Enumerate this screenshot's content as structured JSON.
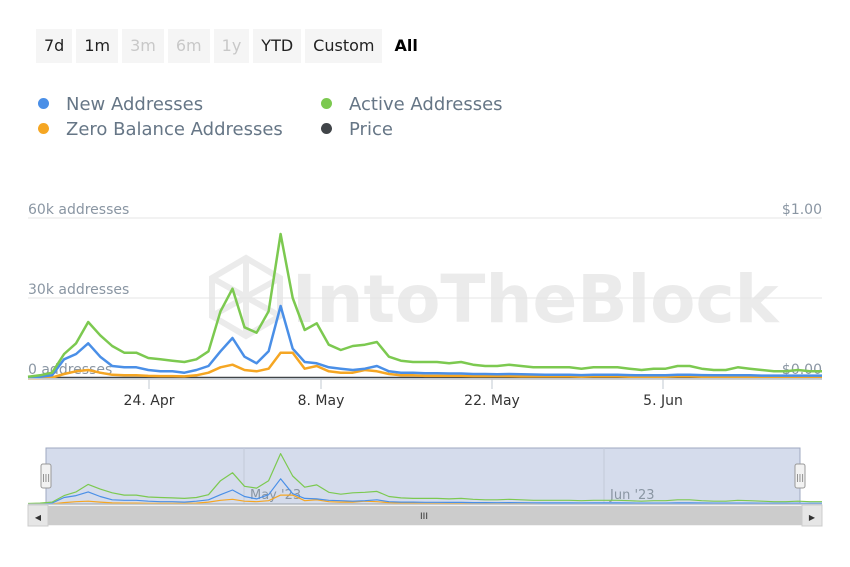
{
  "range_selector": {
    "buttons": [
      {
        "label": "7d",
        "state": "normal"
      },
      {
        "label": "1m",
        "state": "normal"
      },
      {
        "label": "3m",
        "state": "disabled"
      },
      {
        "label": "6m",
        "state": "disabled"
      },
      {
        "label": "1y",
        "state": "disabled"
      },
      {
        "label": "YTD",
        "state": "normal"
      },
      {
        "label": "Custom",
        "state": "normal"
      },
      {
        "label": "All",
        "state": "active"
      }
    ]
  },
  "legend": {
    "new_addresses": {
      "label": "New Addresses",
      "color": "#4a8fe7"
    },
    "active_addresses": {
      "label": "Active Addresses",
      "color": "#7cc950"
    },
    "zero_balance": {
      "label": "Zero Balance Addresses",
      "color": "#f5a623"
    },
    "price": {
      "label": "Price",
      "color": "#404448"
    }
  },
  "watermark": "IntoTheBlock",
  "chart_data": {
    "type": "line",
    "x_axis": {
      "start": "2023-04-14",
      "end": "2023-06-20",
      "tick_labels": [
        "24. Apr",
        "8. May",
        "22. May",
        "5. Jun"
      ]
    },
    "y_left": {
      "ylim": [
        0,
        60000
      ],
      "tick_labels": [
        "0 addresses",
        "30k addresses",
        "60k addresses"
      ]
    },
    "y_right": {
      "ylim": [
        0,
        1.0
      ],
      "tick_labels": [
        "$0.00",
        "$1.00"
      ]
    },
    "series": [
      {
        "name": "Active Addresses",
        "color": "#7cc950",
        "values": [
          500,
          1000,
          2000,
          9000,
          13000,
          21000,
          16000,
          12000,
          9500,
          9500,
          7500,
          7000,
          6500,
          6000,
          7000,
          10000,
          25000,
          33500,
          19000,
          17000,
          25000,
          54000,
          30000,
          18000,
          20500,
          12500,
          10500,
          12000,
          12500,
          13500,
          8000,
          6500,
          6000,
          6000,
          6000,
          5500,
          6000,
          5000,
          4500,
          4500,
          5000,
          4500,
          4000,
          4000,
          4000,
          4000,
          3500,
          4000,
          4000,
          4000,
          3500,
          3000,
          3500,
          3500,
          4500,
          4500,
          3500,
          3000,
          3000,
          4000,
          3500,
          3000,
          2500,
          2500,
          3000,
          2500,
          2500
        ]
      },
      {
        "name": "New Addresses",
        "color": "#4a8fe7",
        "values": [
          200,
          500,
          1000,
          7000,
          9000,
          13000,
          8000,
          4500,
          4000,
          4000,
          3000,
          2500,
          2500,
          2000,
          3000,
          4500,
          10000,
          15000,
          8000,
          5500,
          10000,
          27000,
          11000,
          6000,
          5500,
          4000,
          3500,
          3000,
          3500,
          4500,
          2500,
          2000,
          2000,
          1800,
          1800,
          1700,
          1700,
          1500,
          1500,
          1400,
          1500,
          1400,
          1300,
          1200,
          1200,
          1200,
          1100,
          1200,
          1200,
          1200,
          1100,
          1000,
          1000,
          1000,
          1200,
          1200,
          1100,
          1000,
          1000,
          1000,
          1000,
          900,
          900,
          900,
          900,
          900,
          900
        ]
      },
      {
        "name": "Zero Balance Addresses",
        "color": "#f5a623",
        "values": [
          0,
          0,
          200,
          1500,
          2500,
          3000,
          2000,
          1200,
          1000,
          1000,
          800,
          700,
          700,
          600,
          1000,
          2000,
          4000,
          5000,
          3000,
          2500,
          3500,
          9500,
          9500,
          3500,
          4500,
          2500,
          2000,
          2000,
          3000,
          2500,
          1500,
          1000,
          1000,
          800,
          800,
          800,
          800,
          700,
          700,
          700,
          700,
          600,
          600,
          600,
          600,
          600,
          500,
          600,
          600,
          600,
          500,
          500,
          500,
          500,
          600,
          600,
          500,
          500,
          500,
          500,
          500,
          500,
          400,
          400,
          400,
          400,
          400
        ]
      },
      {
        "name": "Price",
        "color": "#404448",
        "values": [
          0,
          0,
          0,
          0,
          0,
          0,
          0,
          0,
          0,
          0,
          0,
          0,
          0,
          0,
          0,
          0,
          0,
          0,
          0,
          0,
          0,
          0,
          0,
          0,
          0,
          0,
          0,
          0,
          0,
          0,
          0,
          0,
          0,
          0,
          0,
          0,
          0,
          0,
          0,
          0,
          0,
          0,
          0,
          0,
          0,
          0,
          0,
          0,
          0,
          0,
          0,
          0,
          0,
          0,
          0,
          0,
          0,
          0,
          0,
          0,
          0,
          0,
          0,
          0,
          0,
          0,
          0
        ]
      }
    ]
  },
  "navigator": {
    "labels": [
      "May '23",
      "Jun '23"
    ],
    "handle_left_glyph": "|||",
    "handle_right_glyph": "|||",
    "scroll_thumb_glyph": "III",
    "scroll_left_arrow": "◀",
    "scroll_right_arrow": "▶"
  }
}
